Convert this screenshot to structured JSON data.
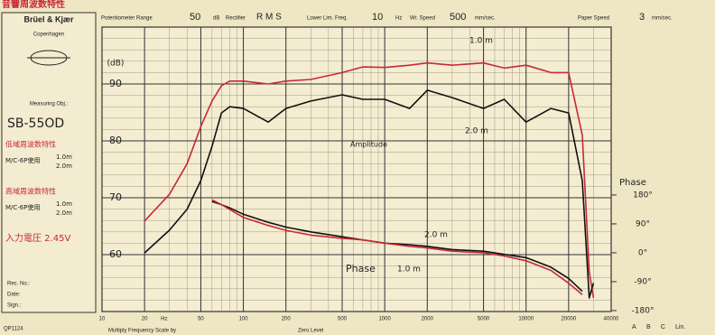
{
  "header": {
    "title": "音響周波数特性",
    "potentiometer_label": "Potentiometer Range",
    "potentiometer_value": "50",
    "potentiometer_unit": "dB",
    "rectifier_label": "Rectifier",
    "rectifier_value": "R M S",
    "lower_freq_label": "Lower Lim. Freq.",
    "lower_freq_value": "10",
    "lower_freq_unit": "Hz",
    "wr_speed_label": "Wr. Speed",
    "wr_speed_value": "500",
    "wr_speed_unit": "mm/sec.",
    "paper_speed_label": "Paper Speed",
    "paper_speed_value": "3",
    "paper_speed_unit": "mm/sec."
  },
  "sidebar": {
    "brand": "Brüel & Kjær",
    "city": "Copenhagen",
    "object_label": "Measuring Obj.:",
    "object": "SB-55OD",
    "low_title": "低域周波数特性",
    "low_mic": "M/C-6P使用",
    "low_d1": "1.0m",
    "low_d2": "2.0m",
    "high_title": "高域周波数特性",
    "high_mic": "M/C-6P使用",
    "high_d1": "1.0m",
    "high_d2": "2.0m",
    "voltage": "入力電圧 2.45V",
    "rec": "Rec. No.:",
    "date": "Date:",
    "sign": "Sign.:"
  },
  "footer": {
    "form": "QP1124",
    "multiply": "Multiply Frequency Scale by",
    "zero": "Zero Level",
    "weights": [
      "A",
      "B",
      "C",
      "Lin."
    ]
  },
  "chart_data": {
    "type": "line",
    "x_unit": "Hz",
    "ylabel": "(dB)",
    "y2label": "Phase",
    "log_x": true,
    "grid": true,
    "annotations": [
      "Amplitude",
      "Phase"
    ],
    "xlim": [
      10,
      40000
    ],
    "xticks": [
      10,
      20,
      50,
      100,
      200,
      500,
      1000,
      2000,
      5000,
      10000,
      20000,
      40000
    ],
    "ylim": [
      50,
      100
    ],
    "yticks": [
      60,
      70,
      80,
      90
    ],
    "y2lim": [
      -183,
      703
    ],
    "y2ticks": [
      {
        "value": 180,
        "label": "180°"
      },
      {
        "value": 90,
        "label": "90°"
      },
      {
        "value": 0,
        "label": "0°"
      },
      {
        "value": -90,
        "label": "-90°"
      },
      {
        "value": -180,
        "label": "-180°"
      }
    ],
    "x": [
      20,
      30,
      40,
      50,
      60,
      70,
      80,
      100,
      150,
      200,
      300,
      500,
      700,
      1000,
      1500,
      2000,
      3000,
      5000,
      7000,
      10000,
      15000,
      20000,
      25000,
      28000,
      30000
    ],
    "series": [
      {
        "name": "1.0 m",
        "color": "#c8283a",
        "values": [
          65.9,
          70.6,
          76,
          82.5,
          87,
          89.7,
          90.5,
          90.5,
          90,
          90.5,
          90.8,
          92,
          93,
          92.9,
          93.3,
          93.7,
          93.3,
          93.7,
          92.8,
          93.3,
          92,
          92,
          81,
          57,
          52.4
        ]
      },
      {
        "name": "2.0 m",
        "color": "#111111",
        "values": [
          60.3,
          64.3,
          68,
          73,
          79,
          84.9,
          86,
          85.7,
          83.3,
          85.7,
          87,
          88.1,
          87.3,
          87.3,
          85.7,
          88.9,
          87.6,
          85.7,
          87.3,
          83.3,
          85.7,
          84.9,
          73,
          52.4,
          55
        ]
      },
      {
        "name": "2.0 m",
        "color": "#111111",
        "axis": "y2",
        "values": [
          null,
          null,
          null,
          null,
          160,
          150,
          140,
          120,
          95,
          80,
          65,
          50,
          40,
          30,
          25,
          20,
          10,
          5,
          -5,
          -15,
          -45,
          -80,
          -120,
          null,
          null
        ]
      },
      {
        "name": "1.0 m",
        "color": "#c8283a",
        "axis": "y2",
        "values": [
          null,
          null,
          null,
          null,
          165,
          150,
          135,
          110,
          85,
          70,
          55,
          45,
          40,
          30,
          20,
          15,
          5,
          0,
          -10,
          -25,
          -55,
          -95,
          -130,
          null,
          null
        ]
      }
    ]
  }
}
